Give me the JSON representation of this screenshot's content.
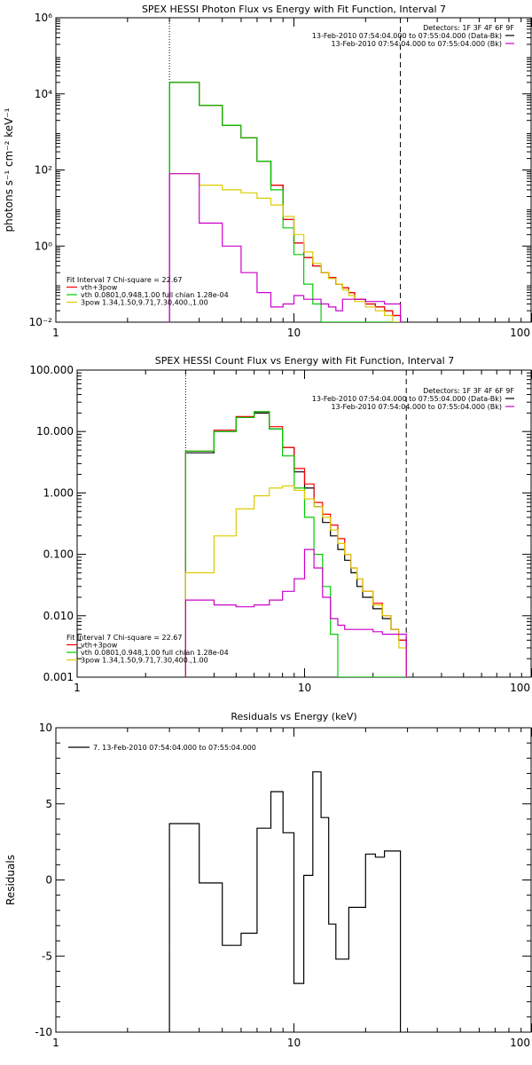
{
  "chart_data": [
    {
      "type": "line",
      "title": "SPEX HESSI Photon Flux vs Energy with Fit Function, Interval 7",
      "ylabel": "photons s⁻¹ cm⁻² keV⁻¹",
      "xlabel": "",
      "xscale": "log",
      "yscale": "log",
      "xlim": [
        1,
        100
      ],
      "ylim": [
        0.01,
        1000000
      ],
      "xticks": [
        1,
        10,
        100
      ],
      "xtick_labels": [
        "1",
        "10",
        "100"
      ],
      "yticks": [
        0.01,
        1,
        100,
        10000,
        1000000
      ],
      "ytick_labels": [
        "10⁻²",
        "10⁰",
        "10²",
        "10⁴",
        "10⁶"
      ],
      "vlines": [
        {
          "x": 3,
          "style": "dotted"
        },
        {
          "x": 28,
          "style": "dashed"
        }
      ],
      "info_lines": [
        "Detectors: 1F 3F 4F 6F 9F",
        "13-Feb-2010 07:54:04.000 to 07:55:04.000 (Data-Bk)",
        "13-Feb-2010 07:54:04.000 to 07:55:04.000 (Bk)"
      ],
      "info_colors": [
        "",
        "#000000",
        "#cc00cc"
      ],
      "fit_lines": [
        "Fit Interval 7   Chi-square = 22.67",
        "vth+3pow",
        "vth 0.0801,0.948,1.00  full chian 1.28e-04",
        "3pow 1.34,1.50,9.71,7.30,400.,1.00"
      ],
      "fit_colors": [
        "",
        "#ff0000",
        "#00cc00",
        "#ddcc00"
      ],
      "edges": [
        3,
        4,
        5,
        6,
        7,
        8,
        9,
        10,
        11,
        12,
        13,
        14,
        15,
        16,
        17,
        18,
        20,
        22,
        24,
        26,
        28
      ],
      "series": [
        {
          "color": "#000000",
          "values": [
            20000,
            5000,
            1500,
            700,
            170,
            40,
            5,
            1.2,
            0.5,
            0.3,
            0.2,
            0.15,
            0.1,
            0.08,
            0.06,
            0.04,
            0.03,
            0.025,
            0.02,
            0.015
          ]
        },
        {
          "color": "#ff0000",
          "values": [
            20000,
            5000,
            1500,
            700,
            170,
            40,
            5,
            1.2,
            0.5,
            0.3,
            0.2,
            0.15,
            0.1,
            0.08,
            0.06,
            0.04,
            0.03,
            0.025,
            0.02,
            0.015
          ]
        },
        {
          "color": "#00cc00",
          "values": [
            20000,
            5000,
            1500,
            700,
            170,
            30,
            3,
            0.6,
            0.1,
            0.03,
            0.01,
            0.01,
            0.01,
            0.01,
            0.01,
            0.01,
            0.01,
            0.01,
            0.01,
            0.01
          ]
        },
        {
          "color": "#ddcc00",
          "values": [
            80,
            40,
            30,
            25,
            18,
            12,
            6,
            2,
            0.7,
            0.35,
            0.2,
            0.14,
            0.1,
            0.07,
            0.05,
            0.035,
            0.025,
            0.02,
            0.015,
            0.01
          ]
        },
        {
          "color": "#cc00cc",
          "values": [
            80,
            4,
            1,
            0.2,
            0.06,
            0.025,
            0.03,
            0.05,
            0.04,
            0.04,
            0.03,
            0.025,
            0.02,
            0.04,
            0.04,
            0.04,
            0.035,
            0.035,
            0.03,
            0.03
          ]
        }
      ]
    },
    {
      "type": "line",
      "title": "SPEX HESSI Count Flux vs Energy with Fit Function, Interval 7",
      "ylabel": "",
      "xlabel": "",
      "xscale": "log",
      "yscale": "log",
      "xlim": [
        1,
        100
      ],
      "ylim": [
        0.001,
        100
      ],
      "xticks": [
        1,
        10,
        100
      ],
      "xtick_labels": [
        "1",
        "10",
        "100"
      ],
      "yticks": [
        0.001,
        0.01,
        0.1,
        1,
        10,
        100
      ],
      "ytick_labels": [
        "0.001",
        "0.010",
        "0.100",
        "1.000",
        "10.000",
        "100.000"
      ],
      "vlines": [
        {
          "x": 3,
          "style": "dotted"
        },
        {
          "x": 28,
          "style": "dashed"
        }
      ],
      "info_lines": [
        "Detectors: 1F 3F 4F 6F 9F",
        "13-Feb-2010 07:54:04.000 to 07:55:04.000 (Data-Bk)",
        "13-Feb-2010 07:54:04.000 to 07:55:04.000 (Bk)"
      ],
      "info_colors": [
        "",
        "#000000",
        "#cc00cc"
      ],
      "fit_lines": [
        "Fit Interval 7   Chi-square = 22.67",
        "vth+3pow",
        "vth 0.0801,0.948,1.00  full chian 1.28e-04",
        "3pow 1.34,1.50,9.71,7.30,400.,1.00"
      ],
      "fit_colors": [
        "",
        "#ff0000",
        "#00cc00",
        "#ddcc00"
      ],
      "edges": [
        3,
        4,
        5,
        6,
        7,
        8,
        9,
        10,
        11,
        12,
        13,
        14,
        15,
        16,
        17,
        18,
        20,
        22,
        24,
        26,
        28
      ],
      "series": [
        {
          "color": "#000000",
          "values": [
            4.5,
            10,
            17,
            20,
            11,
            5.5,
            2.2,
            1.2,
            0.6,
            0.33,
            0.2,
            0.12,
            0.08,
            0.05,
            0.03,
            0.02,
            0.013,
            0.009,
            0.006,
            0.004
          ]
        },
        {
          "color": "#ff0000",
          "values": [
            4.8,
            10.5,
            17.5,
            21,
            12,
            5.5,
            2.5,
            1.4,
            0.7,
            0.45,
            0.3,
            0.18,
            0.1,
            0.06,
            0.04,
            0.025,
            0.016,
            0.01,
            0.006,
            0.004
          ]
        },
        {
          "color": "#00cc00",
          "values": [
            4.8,
            10,
            17,
            21,
            11,
            4,
            1.2,
            0.4,
            0.1,
            0.03,
            0.005,
            0.001,
            0.001,
            0.001,
            0.001,
            0.001,
            0.001,
            0.001,
            0.001,
            0.001
          ]
        },
        {
          "color": "#ddcc00",
          "values": [
            0.05,
            0.2,
            0.55,
            0.9,
            1.2,
            1.3,
            1.1,
            0.8,
            0.6,
            0.4,
            0.25,
            0.15,
            0.1,
            0.06,
            0.04,
            0.025,
            0.015,
            0.01,
            0.006,
            0.003
          ]
        },
        {
          "color": "#cc00cc",
          "values": [
            0.018,
            0.015,
            0.014,
            0.015,
            0.018,
            0.025,
            0.04,
            0.12,
            0.06,
            0.02,
            0.009,
            0.007,
            0.006,
            0.006,
            0.006,
            0.006,
            0.0055,
            0.005,
            0.005,
            0.005
          ]
        }
      ]
    },
    {
      "type": "line",
      "title": "Residuals vs Energy (keV)",
      "ylabel": "Residuals",
      "xlabel": "",
      "xscale": "log",
      "yscale": "linear",
      "xlim": [
        1,
        100
      ],
      "ylim": [
        -10,
        10
      ],
      "xticks": [
        1,
        10,
        100
      ],
      "xtick_labels": [
        "1",
        "10",
        "100"
      ],
      "yticks": [
        -10,
        -5,
        0,
        5,
        10
      ],
      "ytick_labels": [
        "-10",
        "-5",
        "0",
        "5",
        "10"
      ],
      "vlines": [],
      "legend_text": "7. 13-Feb-2010 07:54:04.000 to 07:55:04.000",
      "edges": [
        3,
        4,
        5,
        6,
        7,
        8,
        9,
        10,
        11,
        12,
        13,
        14,
        15,
        16,
        17,
        18,
        20,
        22,
        24,
        26,
        28
      ],
      "series": [
        {
          "color": "#000000",
          "values": [
            3.7,
            -0.2,
            -4.3,
            -3.5,
            3.4,
            5.8,
            3.1,
            -6.8,
            0.3,
            7.1,
            4.1,
            -2.9,
            -5.2,
            -5.2,
            -1.8,
            -1.8,
            1.7,
            1.5,
            1.9,
            1.9
          ]
        }
      ]
    }
  ]
}
